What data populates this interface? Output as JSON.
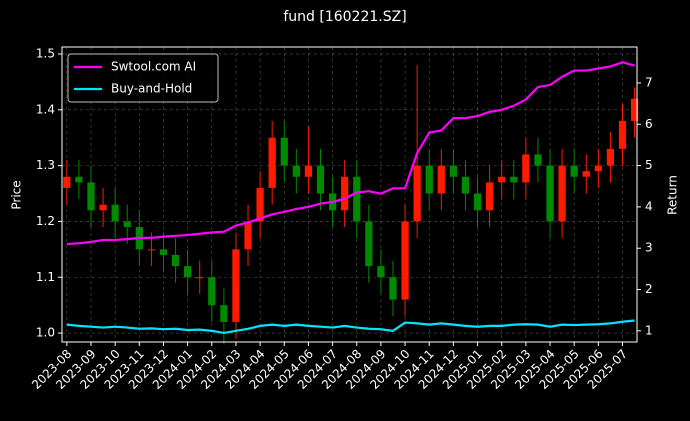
{
  "chart_data": {
    "type": "candlestick",
    "title": "fund [160221.SZ]",
    "y_label": "Price",
    "y2_label": "Return",
    "x": [
      0,
      0.5,
      1,
      1.5,
      2,
      2.5,
      3,
      3.5,
      4,
      4.5,
      5,
      5.5,
      6,
      6.5,
      7,
      7.5,
      8,
      8.5,
      9,
      9.5,
      10,
      10.5,
      11,
      11.5,
      12,
      12.5,
      13,
      13.5,
      14,
      14.5,
      15,
      15.5,
      16,
      16.5,
      17,
      17.5,
      18,
      18.5,
      19,
      19.5,
      20,
      20.5,
      21,
      21.5,
      22,
      22.5,
      23,
      23.5
    ],
    "xlim": [
      -0.2,
      23.6
    ],
    "xticks": [
      {
        "value": 0,
        "label": "2023-08"
      },
      {
        "value": 1,
        "label": "2023-09"
      },
      {
        "value": 2,
        "label": "2023-10"
      },
      {
        "value": 3,
        "label": "2023-11"
      },
      {
        "value": 4,
        "label": "2023-12"
      },
      {
        "value": 5,
        "label": "2024-01"
      },
      {
        "value": 6,
        "label": "2024-02"
      },
      {
        "value": 7,
        "label": "2024-03"
      },
      {
        "value": 8,
        "label": "2024-04"
      },
      {
        "value": 9,
        "label": "2024-05"
      },
      {
        "value": 10,
        "label": "2024-06"
      },
      {
        "value": 11,
        "label": "2024-07"
      },
      {
        "value": 12,
        "label": "2024-08"
      },
      {
        "value": 13,
        "label": "2024-09"
      },
      {
        "value": 14,
        "label": "2024-10"
      },
      {
        "value": 15,
        "label": "2024-11"
      },
      {
        "value": 16,
        "label": "2024-12"
      },
      {
        "value": 17,
        "label": "2025-01"
      },
      {
        "value": 18,
        "label": "2025-02"
      },
      {
        "value": 19,
        "label": "2025-03"
      },
      {
        "value": 20,
        "label": "2025-04"
      },
      {
        "value": 21,
        "label": "2025-05"
      },
      {
        "value": 22,
        "label": "2025-06"
      },
      {
        "value": 23,
        "label": "2025-07"
      }
    ],
    "ylim": [
      0.984,
      1.5125
    ],
    "yticks": [
      {
        "value": 1.0,
        "label": "1.0"
      },
      1.1,
      1.2,
      1.3,
      1.4,
      1.5
    ],
    "y2lim": [
      0.73,
      7.87
    ],
    "y2ticks": [
      1,
      2,
      3,
      4,
      5,
      6,
      7
    ],
    "grid": true,
    "candles": {
      "up_color": "#ff1a00",
      "down_color": "#008a00",
      "open": [
        1.26,
        1.28,
        1.27,
        1.22,
        1.23,
        1.2,
        1.19,
        1.15,
        1.15,
        1.14,
        1.12,
        1.1,
        1.1,
        1.05,
        1.02,
        1.15,
        1.2,
        1.26,
        1.35,
        1.3,
        1.28,
        1.3,
        1.25,
        1.22,
        1.28,
        1.2,
        1.12,
        1.1,
        1.06,
        1.2,
        1.3,
        1.25,
        1.3,
        1.28,
        1.25,
        1.22,
        1.27,
        1.28,
        1.27,
        1.32,
        1.3,
        1.2,
        1.3,
        1.28,
        1.29,
        1.3,
        1.33,
        1.38
      ],
      "high": [
        1.31,
        1.31,
        1.3,
        1.26,
        1.26,
        1.23,
        1.22,
        1.18,
        1.18,
        1.17,
        1.15,
        1.13,
        1.13,
        1.08,
        1.18,
        1.23,
        1.29,
        1.38,
        1.38,
        1.33,
        1.37,
        1.33,
        1.28,
        1.31,
        1.31,
        1.23,
        1.15,
        1.13,
        1.23,
        1.48,
        1.33,
        1.33,
        1.33,
        1.31,
        1.28,
        1.3,
        1.31,
        1.31,
        1.35,
        1.35,
        1.33,
        1.33,
        1.33,
        1.32,
        1.33,
        1.36,
        1.41,
        1.44
      ],
      "low": [
        1.23,
        1.24,
        1.19,
        1.19,
        1.17,
        1.16,
        1.12,
        1.12,
        1.11,
        1.09,
        1.07,
        1.07,
        1.02,
        0.98,
        0.99,
        1.12,
        1.17,
        1.23,
        1.27,
        1.25,
        1.25,
        1.22,
        1.19,
        1.19,
        1.17,
        1.09,
        1.07,
        1.03,
        1.03,
        1.17,
        1.22,
        1.22,
        1.25,
        1.22,
        1.19,
        1.19,
        1.24,
        1.24,
        1.24,
        1.27,
        1.17,
        1.17,
        1.25,
        1.25,
        1.26,
        1.27,
        1.3,
        1.35
      ],
      "close": [
        1.28,
        1.27,
        1.22,
        1.23,
        1.2,
        1.19,
        1.15,
        1.15,
        1.14,
        1.12,
        1.1,
        1.1,
        1.05,
        1.02,
        1.15,
        1.2,
        1.26,
        1.35,
        1.3,
        1.28,
        1.3,
        1.25,
        1.22,
        1.28,
        1.2,
        1.12,
        1.1,
        1.06,
        1.2,
        1.3,
        1.25,
        1.3,
        1.28,
        1.25,
        1.22,
        1.27,
        1.28,
        1.27,
        1.32,
        1.3,
        1.2,
        1.3,
        1.28,
        1.29,
        1.3,
        1.33,
        1.38,
        1.42
      ]
    },
    "series": [
      {
        "name": "Swtool.com AI",
        "color": "#ff00ff",
        "axis": "y2",
        "values": [
          3.1,
          3.12,
          3.15,
          3.2,
          3.2,
          3.22,
          3.25,
          3.25,
          3.28,
          3.3,
          3.32,
          3.35,
          3.38,
          3.4,
          3.55,
          3.62,
          3.72,
          3.82,
          3.88,
          3.95,
          4.0,
          4.08,
          4.12,
          4.2,
          4.35,
          4.38,
          4.32,
          4.45,
          4.45,
          5.3,
          5.8,
          5.85,
          6.15,
          6.15,
          6.2,
          6.3,
          6.35,
          6.45,
          6.6,
          6.9,
          6.95,
          7.15,
          7.3,
          7.3,
          7.35,
          7.4,
          7.5,
          7.42
        ]
      },
      {
        "name": "Buy-and-Hold",
        "color": "#00e5ff",
        "axis": "y2",
        "values": [
          1.15,
          1.12,
          1.1,
          1.08,
          1.1,
          1.08,
          1.05,
          1.06,
          1.04,
          1.05,
          1.02,
          1.03,
          1.0,
          0.95,
          1.0,
          1.05,
          1.12,
          1.15,
          1.12,
          1.15,
          1.12,
          1.1,
          1.08,
          1.12,
          1.08,
          1.05,
          1.04,
          1.0,
          1.2,
          1.18,
          1.15,
          1.18,
          1.15,
          1.12,
          1.1,
          1.12,
          1.12,
          1.15,
          1.16,
          1.15,
          1.1,
          1.15,
          1.14,
          1.15,
          1.16,
          1.18,
          1.22,
          1.25
        ]
      }
    ],
    "legend": "upper left"
  }
}
